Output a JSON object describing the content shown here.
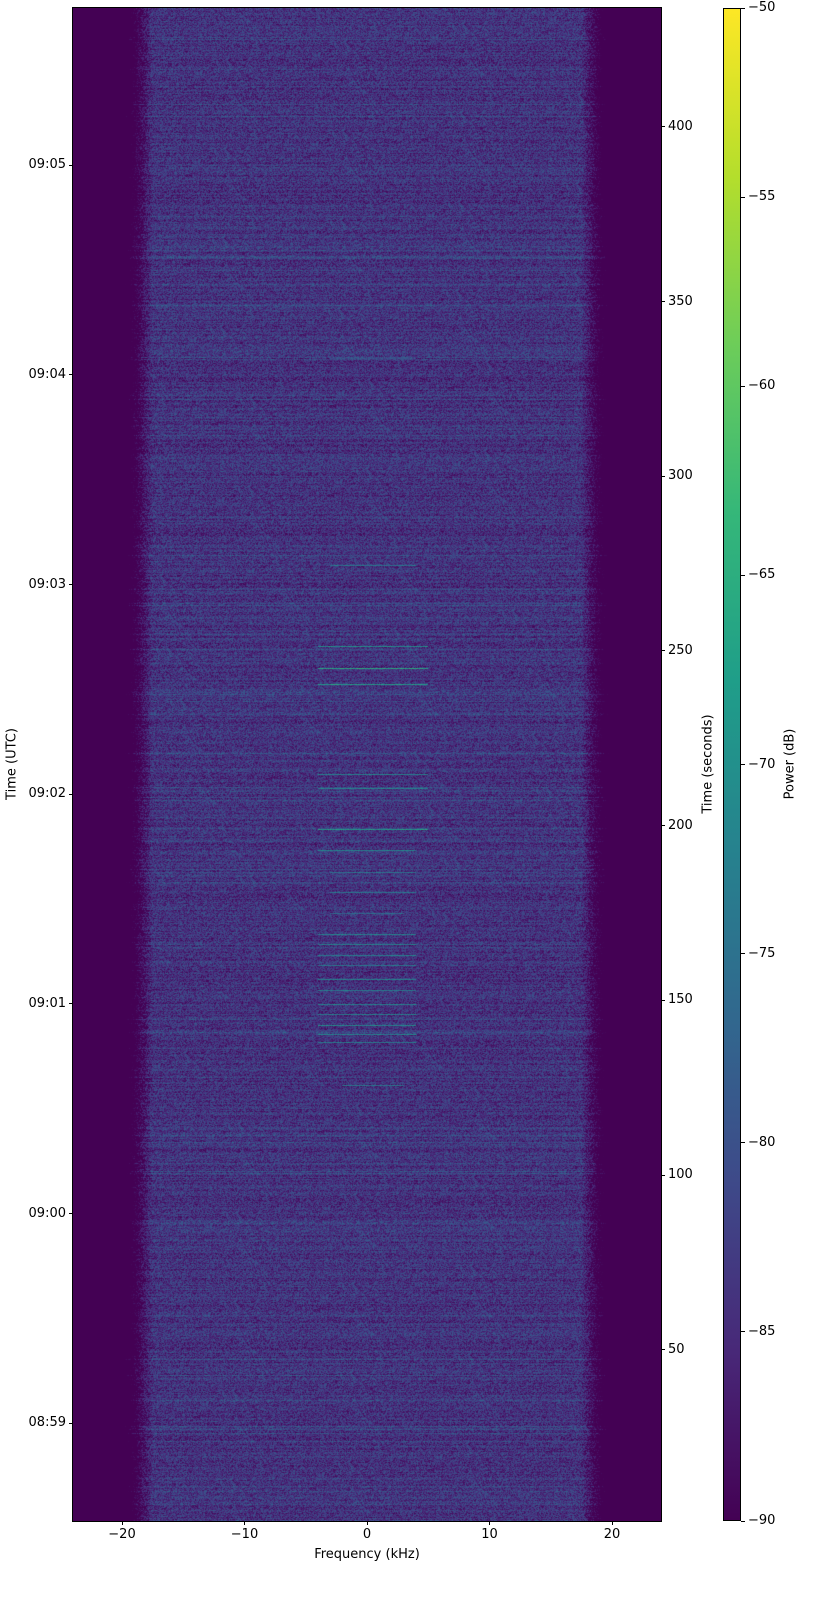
{
  "chart_data": {
    "type": "heatmap",
    "subtype": "spectrogram",
    "xlabel": "Frequency (kHz)",
    "ylabel_left": "Time (UTC)",
    "ylabel_right": "Time (seconds)",
    "colorbar_label": "Power (dB)",
    "colormap": "viridis",
    "xlim": [
      -24,
      24
    ],
    "ylim_seconds": [
      1,
      434
    ],
    "clim": [
      -90,
      -50
    ],
    "x_ticks": [
      -20,
      -10,
      0,
      10,
      20
    ],
    "x_tick_labels": [
      "−20",
      "−10",
      "0",
      "10",
      "20"
    ],
    "right_ticks": [
      50,
      100,
      150,
      200,
      250,
      300,
      350,
      400
    ],
    "right_tick_labels": [
      "50",
      "100",
      "150",
      "200",
      "250",
      "300",
      "350",
      "400"
    ],
    "left_ticks_seconds": [
      29,
      89,
      149,
      209,
      269,
      329,
      389
    ],
    "left_tick_labels": [
      "08:59",
      "09:00",
      "09:01",
      "09:02",
      "09:03",
      "09:04",
      "09:05"
    ],
    "colorbar_ticks": [
      -90,
      -85,
      -80,
      -75,
      -70,
      -65,
      -60,
      -55,
      -50
    ],
    "colorbar_tick_labels": [
      "−90",
      "−85",
      "−80",
      "−75",
      "−70",
      "−65",
      "−60",
      "−55",
      "−50"
    ],
    "noise_floor_db": -84,
    "passband_khz": [
      -20,
      20
    ],
    "signal_bursts": [
      {
        "time_s": 333.7,
        "f_min_khz": -3,
        "f_max_khz": 4,
        "power_db": -80
      },
      {
        "time_s": 274.6,
        "f_min_khz": -3,
        "f_max_khz": 4,
        "power_db": -74
      },
      {
        "time_s": 251.4,
        "f_min_khz": -4,
        "f_max_khz": 5,
        "power_db": -70
      },
      {
        "time_s": 245.0,
        "f_min_khz": -4,
        "f_max_khz": 5,
        "power_db": -66
      },
      {
        "time_s": 240.6,
        "f_min_khz": -4,
        "f_max_khz": 5,
        "power_db": -68
      },
      {
        "time_s": 214.9,
        "f_min_khz": -4,
        "f_max_khz": 5,
        "power_db": -72
      },
      {
        "time_s": 210.9,
        "f_min_khz": -4,
        "f_max_khz": 5,
        "power_db": -72
      },
      {
        "time_s": 199.1,
        "f_min_khz": -4,
        "f_max_khz": 5,
        "power_db": -68
      },
      {
        "time_s": 193.1,
        "f_min_khz": -4,
        "f_max_khz": 4,
        "power_db": -72
      },
      {
        "time_s": 186.6,
        "f_min_khz": -3,
        "f_max_khz": 4,
        "power_db": -74
      },
      {
        "time_s": 181.0,
        "f_min_khz": -3,
        "f_max_khz": 4,
        "power_db": -74
      },
      {
        "time_s": 174.9,
        "f_min_khz": -3,
        "f_max_khz": 3,
        "power_db": -76
      },
      {
        "time_s": 169.0,
        "f_min_khz": -4,
        "f_max_khz": 4,
        "power_db": -72
      },
      {
        "time_s": 166.0,
        "f_min_khz": -4,
        "f_max_khz": 4,
        "power_db": -72
      },
      {
        "time_s": 163.0,
        "f_min_khz": -4,
        "f_max_khz": 4,
        "power_db": -73
      },
      {
        "time_s": 160.0,
        "f_min_khz": -4,
        "f_max_khz": 4,
        "power_db": -74
      },
      {
        "time_s": 156.0,
        "f_min_khz": -4,
        "f_max_khz": 4,
        "power_db": -72
      },
      {
        "time_s": 153.0,
        "f_min_khz": -4,
        "f_max_khz": 4,
        "power_db": -73
      },
      {
        "time_s": 149.0,
        "f_min_khz": -4,
        "f_max_khz": 4,
        "power_db": -72
      },
      {
        "time_s": 146.0,
        "f_min_khz": -4,
        "f_max_khz": 4,
        "power_db": -72
      },
      {
        "time_s": 143.0,
        "f_min_khz": -4,
        "f_max_khz": 4,
        "power_db": -71
      },
      {
        "time_s": 140.5,
        "f_min_khz": -4,
        "f_max_khz": 4,
        "power_db": -72
      },
      {
        "time_s": 138.0,
        "f_min_khz": -4,
        "f_max_khz": 4,
        "power_db": -73
      },
      {
        "time_s": 125.7,
        "f_min_khz": -2,
        "f_max_khz": 3,
        "power_db": -74
      }
    ]
  }
}
